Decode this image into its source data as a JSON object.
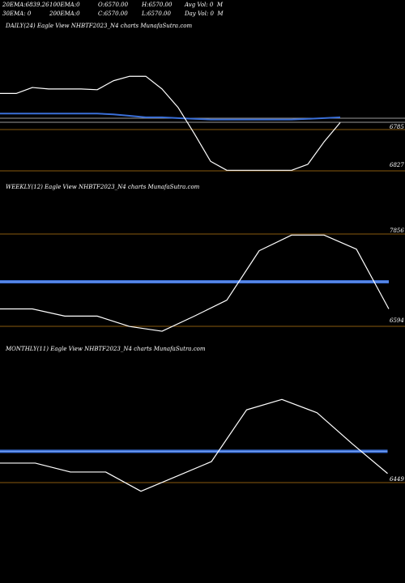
{
  "header": {
    "row1": [
      {
        "label": "20EMA:",
        "value": "6839.26"
      },
      {
        "label": "100EMA:",
        "value": "0"
      },
      {
        "label": "O:",
        "value": "6570.00"
      },
      {
        "label": "H:",
        "value": "6570.00"
      },
      {
        "label": "Avg Vol:",
        "value": "0",
        "suffix": "M"
      }
    ],
    "row2": [
      {
        "label": "30EMA:",
        "value": "0"
      },
      {
        "label": "200EMA:",
        "value": "0"
      },
      {
        "label": "C:",
        "value": "6570.00"
      },
      {
        "label": "L:",
        "value": "6570.00"
      },
      {
        "label": "Day Vol:",
        "value": "0",
        "suffix": "M"
      }
    ]
  },
  "colors": {
    "background": "#000000",
    "price_line": "#ffffff",
    "ema_line": "#3a6fd8",
    "ema_line_light": "#7aa2f0",
    "ref_line_orange": "#8a5a0e",
    "ref_line_grey": "#9a9a9a"
  },
  "chart_data": [
    {
      "type": "line",
      "title": "DAILY(24) Eagle  View  NHBTF2023_N4  charts MunafaSutra.com",
      "ylabels": [
        "6785",
        "6827"
      ],
      "series": [
        {
          "values": [
            6827,
            6827,
            6835,
            6833,
            6833,
            6833,
            6832,
            6844,
            6850,
            6850,
            6833,
            6808,
            6773,
            6736,
            6724,
            6724,
            6724,
            6724,
            6724,
            6732,
            6762,
            6788
          ]
        },
        {
          "values": [
            6800,
            6800,
            6800,
            6800,
            6800,
            6800,
            6800,
            6799,
            6797,
            6795,
            6795,
            6794,
            6793,
            6792,
            6792,
            6792,
            6792,
            6792,
            6792,
            6793,
            6794,
            6795
          ]
        }
      ]
    },
    {
      "type": "line",
      "title": "WEEKLY(12) Eagle  View  NHBTF2023_N4  charts MunafaSutra.com",
      "ylabels": [
        "7856",
        "6594"
      ],
      "series": [
        {
          "values": [
            6930,
            6930,
            6840,
            6840,
            6710,
            6650,
            6840,
            7040,
            7660,
            7856,
            7856,
            7680,
            6930
          ]
        },
        {
          "values": [
            7270,
            7270,
            7270,
            7270,
            7270,
            7270,
            7270,
            7270,
            7270,
            7270,
            7270,
            7270,
            7270
          ]
        }
      ]
    },
    {
      "type": "line",
      "title": "MONTHLY(11) Eagle  View  NHBTF2023_N4  charts MunafaSutra.com",
      "ylabels": [
        "6449"
      ],
      "series": [
        {
          "values": [
            6590,
            6590,
            6530,
            6530,
            6400,
            6500,
            6600,
            6950,
            7020,
            6930,
            6720,
            6520
          ]
        },
        {
          "values": [
            6670,
            6670,
            6670,
            6670,
            6670,
            6670,
            6670,
            6670,
            6670,
            6670,
            6670,
            6670
          ]
        }
      ]
    }
  ]
}
